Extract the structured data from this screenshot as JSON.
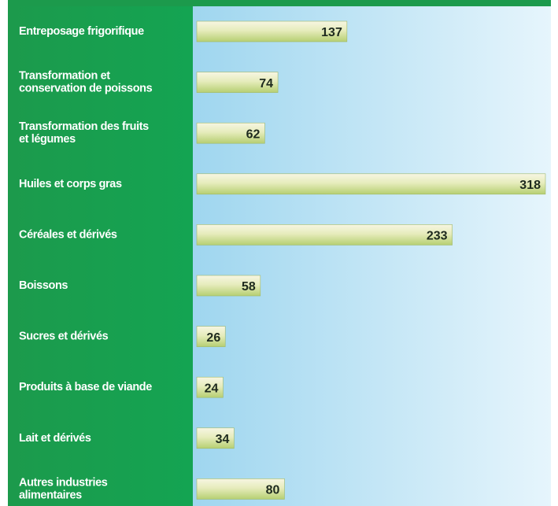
{
  "chart_data": {
    "type": "bar",
    "orientation": "horizontal",
    "categories": [
      "Entreposage frigorifique",
      "Transformation et\nconservation de poissons",
      "Transformation des fruits\net légumes",
      "Huiles et corps gras",
      "Céréales et dérivés",
      "Boissons",
      "Sucres et dérivés",
      "Produits à base de viande",
      "Lait et dérivés",
      "Autres industries\nalimentaires"
    ],
    "values": [
      137,
      74,
      62,
      318,
      233,
      58,
      26,
      24,
      34,
      80
    ],
    "color": "#d4e29c",
    "xlim": [
      0,
      318
    ]
  }
}
